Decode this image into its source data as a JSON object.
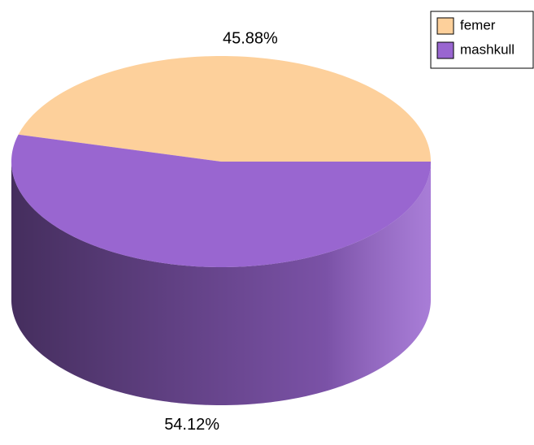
{
  "chart_data": {
    "type": "pie3d",
    "categories": [
      "femer",
      "mashkull"
    ],
    "values": [
      45.88,
      54.12
    ],
    "value_labels": [
      "45.88%",
      "54.12%"
    ],
    "colors": [
      "#fdd09b",
      "#9966d0"
    ],
    "legend": "top-right"
  }
}
